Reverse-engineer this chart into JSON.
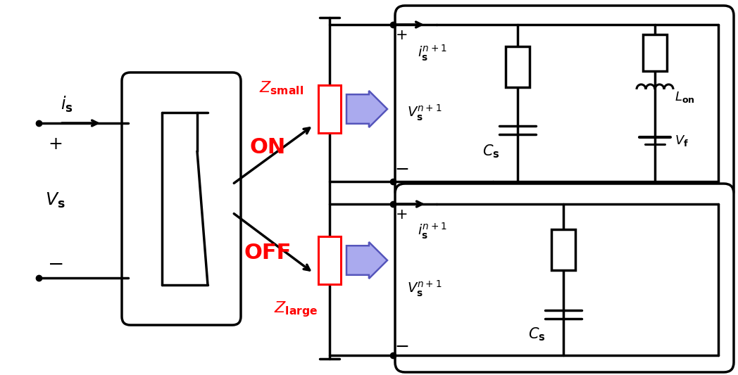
{
  "bg_color": "#ffffff",
  "line_color": "#000000",
  "red_color": "#ff0000",
  "blue_color": "#8888ff",
  "fig_width": 10.48,
  "fig_height": 5.33,
  "dpi": 100
}
